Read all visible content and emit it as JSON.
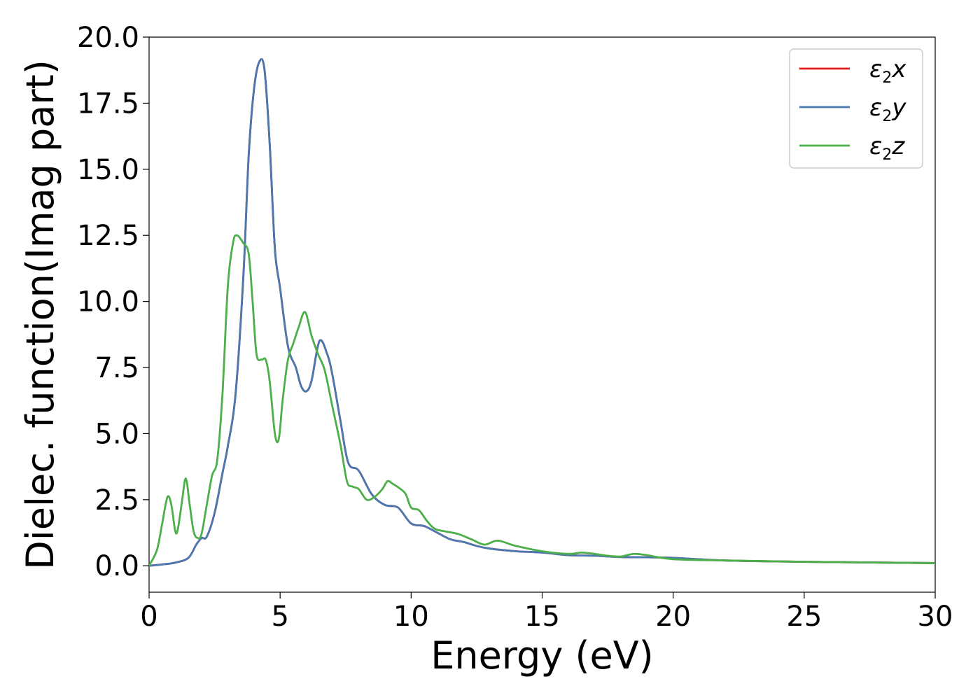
{
  "chart_data": {
    "type": "line",
    "xlabel": "Energy (eV)",
    "ylabel": "Dielec. function(Imag part)",
    "xlim": [
      0,
      30
    ],
    "ylim": [
      -1.0,
      20.0
    ],
    "xticks": [
      "0",
      "5",
      "10",
      "15",
      "20",
      "25",
      "30"
    ],
    "yticks": [
      "0.0",
      "2.5",
      "5.0",
      "7.5",
      "10.0",
      "12.5",
      "15.0",
      "17.5",
      "20.0"
    ],
    "grid": false,
    "legend_position": "top-right",
    "series": [
      {
        "legend_base": "ε",
        "legend_sub": "2",
        "legend_var": "x",
        "color": "#e41a1c",
        "x": [
          0,
          0.5,
          1.0,
          1.5,
          1.8,
          2.0,
          2.2,
          2.5,
          2.8,
          3.0,
          3.3,
          3.6,
          3.8,
          4.0,
          4.2,
          4.4,
          4.6,
          4.8,
          5.0,
          5.3,
          5.6,
          5.8,
          6.0,
          6.2,
          6.5,
          6.8,
          7.0,
          7.3,
          7.6,
          8.0,
          8.5,
          9.0,
          9.5,
          10.0,
          10.5,
          11.0,
          11.5,
          12.0,
          12.5,
          13.0,
          14.0,
          15.0,
          16.0,
          17.0,
          18.0,
          19.0,
          20.0,
          22.0,
          25.0,
          28.0,
          30.0
        ],
        "y": [
          0.0,
          0.05,
          0.12,
          0.3,
          0.8,
          1.05,
          1.1,
          2.0,
          3.5,
          4.5,
          6.5,
          11.0,
          15.5,
          18.0,
          19.05,
          18.8,
          16.0,
          12.0,
          10.5,
          8.3,
          7.5,
          6.8,
          6.6,
          7.0,
          8.5,
          8.0,
          7.2,
          5.5,
          3.9,
          3.6,
          2.7,
          2.3,
          2.2,
          1.6,
          1.5,
          1.25,
          1.0,
          0.9,
          0.75,
          0.65,
          0.55,
          0.5,
          0.4,
          0.38,
          0.33,
          0.32,
          0.3,
          0.2,
          0.15,
          0.12,
          0.1
        ]
      },
      {
        "legend_base": "ε",
        "legend_sub": "2",
        "legend_var": "y",
        "color": "#4a78b0",
        "x": [
          0,
          0.5,
          1.0,
          1.5,
          1.8,
          2.0,
          2.2,
          2.5,
          2.8,
          3.0,
          3.3,
          3.6,
          3.8,
          4.0,
          4.2,
          4.4,
          4.6,
          4.8,
          5.0,
          5.3,
          5.6,
          5.8,
          6.0,
          6.2,
          6.5,
          6.8,
          7.0,
          7.3,
          7.6,
          8.0,
          8.5,
          9.0,
          9.5,
          10.0,
          10.5,
          11.0,
          11.5,
          12.0,
          12.5,
          13.0,
          14.0,
          15.0,
          16.0,
          17.0,
          18.0,
          19.0,
          20.0,
          22.0,
          25.0,
          28.0,
          30.0
        ],
        "y": [
          0.0,
          0.05,
          0.12,
          0.3,
          0.8,
          1.05,
          1.1,
          2.0,
          3.5,
          4.5,
          6.5,
          11.0,
          15.5,
          18.0,
          19.05,
          18.8,
          16.0,
          12.0,
          10.5,
          8.3,
          7.5,
          6.8,
          6.6,
          7.0,
          8.5,
          8.0,
          7.2,
          5.5,
          3.9,
          3.6,
          2.7,
          2.3,
          2.2,
          1.6,
          1.5,
          1.25,
          1.0,
          0.9,
          0.75,
          0.65,
          0.55,
          0.5,
          0.4,
          0.38,
          0.33,
          0.32,
          0.3,
          0.2,
          0.15,
          0.12,
          0.1
        ]
      },
      {
        "legend_base": "ε",
        "legend_sub": "2",
        "legend_var": "z",
        "color": "#4daf4a",
        "x": [
          0,
          0.3,
          0.5,
          0.7,
          0.85,
          1.0,
          1.1,
          1.25,
          1.4,
          1.55,
          1.7,
          1.85,
          2.0,
          2.2,
          2.4,
          2.6,
          2.8,
          3.0,
          3.2,
          3.35,
          3.6,
          3.8,
          3.95,
          4.1,
          4.3,
          4.45,
          4.6,
          4.8,
          4.95,
          5.1,
          5.3,
          5.5,
          5.7,
          5.95,
          6.2,
          6.45,
          6.7,
          7.0,
          7.3,
          7.55,
          7.75,
          8.0,
          8.3,
          8.6,
          8.9,
          9.1,
          9.3,
          9.6,
          9.8,
          10.0,
          10.3,
          10.6,
          10.9,
          11.3,
          11.8,
          12.3,
          12.8,
          13.3,
          14.0,
          15.0,
          16.0,
          16.5,
          17.0,
          17.5,
          18.0,
          18.5,
          19.0,
          20.0,
          22.0,
          25.0,
          30.0
        ],
        "y": [
          0.0,
          0.6,
          1.6,
          2.6,
          2.3,
          1.3,
          1.4,
          2.4,
          3.3,
          2.3,
          1.3,
          1.05,
          1.2,
          2.3,
          3.4,
          4.0,
          6.5,
          10.5,
          12.2,
          12.5,
          12.2,
          11.8,
          10.0,
          8.0,
          7.8,
          7.8,
          7.0,
          5.0,
          4.8,
          6.3,
          7.8,
          8.4,
          9.0,
          9.6,
          8.7,
          8.0,
          7.4,
          6.0,
          4.6,
          3.2,
          3.0,
          2.9,
          2.5,
          2.6,
          2.9,
          3.2,
          3.1,
          2.9,
          2.7,
          2.2,
          2.1,
          1.7,
          1.4,
          1.3,
          1.2,
          1.0,
          0.8,
          0.95,
          0.75,
          0.55,
          0.45,
          0.5,
          0.45,
          0.38,
          0.35,
          0.45,
          0.4,
          0.25,
          0.2,
          0.15,
          0.1
        ]
      }
    ]
  }
}
